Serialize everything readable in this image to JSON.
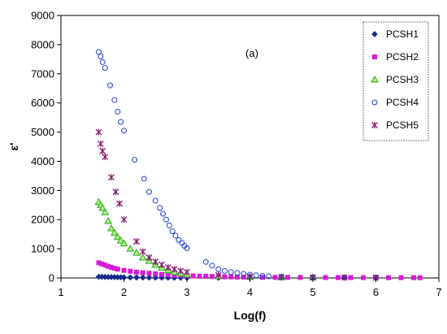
{
  "chart_data": {
    "type": "scatter",
    "title": "",
    "annotation": "(a)",
    "xlabel": "Log(f)",
    "ylabel": "ε'",
    "xlim": [
      1,
      7
    ],
    "ylim": [
      0,
      9000
    ],
    "xticks": [
      "1",
      "2",
      "3",
      "4",
      "5",
      "6",
      "7"
    ],
    "yticks": [
      "0",
      "1000",
      "2000",
      "3000",
      "4000",
      "5000",
      "6000",
      "7000",
      "8000",
      "9000"
    ],
    "grid": false,
    "legend_position": "top-right",
    "series": [
      {
        "name": "PCSH1",
        "marker": "diamond",
        "color": "#1a2a8c",
        "x": [
          1.6,
          1.65,
          1.7,
          1.75,
          1.8,
          1.85,
          1.9,
          1.95,
          2.0,
          2.1,
          2.2,
          2.3,
          2.4,
          2.5,
          2.6,
          2.7,
          2.8,
          2.9,
          3.0,
          3.5,
          4.0,
          4.5,
          5.0,
          5.5,
          6.0
        ],
        "y": [
          40,
          38,
          35,
          32,
          30,
          28,
          25,
          23,
          20,
          18,
          16,
          14,
          12,
          10,
          9,
          8,
          7,
          6,
          5,
          4,
          3,
          3,
          2,
          2,
          2
        ]
      },
      {
        "name": "PCSH2",
        "marker": "square",
        "color": "#d81bd8",
        "x": [
          1.6,
          1.65,
          1.7,
          1.75,
          1.8,
          1.85,
          1.9,
          2.0,
          2.1,
          2.2,
          2.3,
          2.4,
          2.5,
          2.6,
          2.7,
          2.8,
          2.9,
          3.0,
          3.1,
          3.2,
          3.3,
          3.4,
          3.5,
          3.6,
          3.7,
          3.8,
          3.9,
          4.0,
          4.2,
          4.4,
          4.6,
          4.8,
          5.0,
          5.2,
          5.4,
          5.6,
          5.8,
          6.0,
          6.2,
          6.4,
          6.6,
          6.7
        ],
        "y": [
          520,
          480,
          440,
          400,
          360,
          330,
          300,
          260,
          230,
          200,
          180,
          160,
          140,
          120,
          110,
          100,
          90,
          80,
          70,
          60,
          55,
          50,
          45,
          40,
          35,
          30,
          28,
          25,
          22,
          20,
          18,
          16,
          15,
          14,
          13,
          12,
          11,
          10,
          10,
          9,
          9,
          8
        ]
      },
      {
        "name": "PCSH3",
        "marker": "triangle",
        "color": "#22aa22",
        "x": [
          1.6,
          1.63,
          1.66,
          1.7,
          1.75,
          1.8,
          1.85,
          1.9,
          1.95,
          2.0,
          2.1,
          2.2,
          2.3,
          2.4,
          2.5,
          2.6,
          2.7,
          2.8,
          2.9,
          3.0,
          3.5,
          4.0,
          4.5,
          5.0
        ],
        "y": [
          2600,
          2500,
          2400,
          2250,
          1950,
          1700,
          1550,
          1400,
          1280,
          1180,
          1000,
          860,
          700,
          580,
          450,
          350,
          260,
          200,
          150,
          120,
          60,
          30,
          20,
          15
        ]
      },
      {
        "name": "PCSH4",
        "marker": "circle",
        "color": "#1f3fd1",
        "x": [
          1.6,
          1.63,
          1.66,
          1.7,
          1.78,
          1.85,
          1.9,
          1.95,
          2.0,
          2.17,
          2.32,
          2.4,
          2.5,
          2.57,
          2.62,
          2.67,
          2.72,
          2.77,
          2.82,
          2.87,
          2.92,
          2.96,
          3.0,
          3.3,
          3.4,
          3.5,
          3.6,
          3.7,
          3.8,
          3.9,
          4.0,
          4.1,
          4.2,
          4.3,
          4.5,
          5.0,
          5.5,
          6.0
        ],
        "y": [
          7750,
          7600,
          7400,
          7200,
          6600,
          6100,
          5700,
          5350,
          5050,
          4050,
          3400,
          2950,
          2650,
          2400,
          2200,
          2000,
          1800,
          1600,
          1450,
          1300,
          1200,
          1100,
          1020,
          550,
          420,
          300,
          240,
          200,
          170,
          140,
          110,
          90,
          70,
          55,
          40,
          25,
          15,
          10
        ]
      },
      {
        "name": "PCSH5",
        "marker": "asterisk",
        "color": "#8b1a6f",
        "x": [
          1.6,
          1.63,
          1.66,
          1.7,
          1.8,
          1.87,
          1.93,
          2.0,
          2.2,
          2.3,
          2.4,
          2.5,
          2.6,
          2.7,
          2.8,
          2.9,
          3.0,
          3.5,
          4.0,
          4.5,
          5.0,
          5.5,
          6.0
        ],
        "y": [
          5000,
          4600,
          4350,
          4150,
          3450,
          2950,
          2550,
          2000,
          1250,
          900,
          700,
          560,
          450,
          360,
          300,
          240,
          200,
          100,
          50,
          30,
          20,
          15,
          10
        ]
      }
    ]
  }
}
